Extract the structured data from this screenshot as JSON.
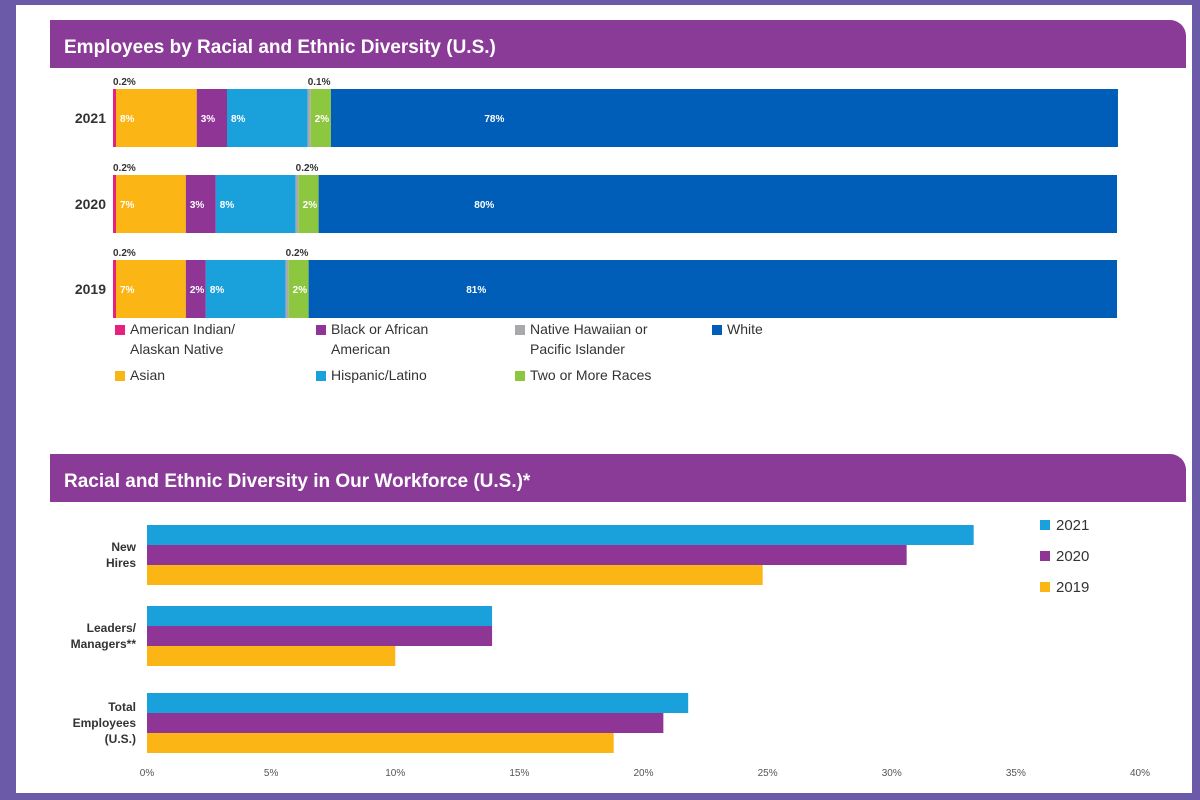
{
  "chart_data": [
    {
      "type": "bar",
      "orientation": "horizontal-stacked",
      "title": "Employees by Racial and Ethnic Diversity (U.S.)",
      "unit": "%",
      "xlim": [
        0,
        100
      ],
      "categories": [
        "2021",
        "2020",
        "2019"
      ],
      "series": [
        {
          "name": "American Indian/ Alaskan Native",
          "legend_lines": [
            "American Indian/",
            "Alaskan Native"
          ],
          "color": "#e8207e",
          "values": [
            0.2,
            0.2,
            0.2
          ],
          "labels": [
            "0.2%",
            "0.2%",
            "0.2%"
          ],
          "label_position": "above"
        },
        {
          "name": "Asian",
          "legend_lines": [
            "Asian"
          ],
          "color": "#fbb616",
          "values": [
            8,
            7,
            7
          ],
          "labels": [
            "8%",
            "7%",
            "7%"
          ],
          "label_position": "inside"
        },
        {
          "name": "Black or African American",
          "legend_lines": [
            "Black or African",
            "American"
          ],
          "color": "#8e3596",
          "values": [
            3,
            3,
            2
          ],
          "labels": [
            "3%",
            "3%",
            "2%"
          ],
          "label_position": "inside"
        },
        {
          "name": "Hispanic/Latino",
          "legend_lines": [
            "Hispanic/Latino"
          ],
          "color": "#1aa1dc",
          "values": [
            8,
            8,
            8
          ],
          "labels": [
            "8%",
            "8%",
            "8%"
          ],
          "label_position": "inside"
        },
        {
          "name": "Native Hawaiian or Pacific Islander",
          "legend_lines": [
            "Native Hawaiian or",
            "Pacific Islander"
          ],
          "color": "#a7a9ac",
          "values": [
            0.1,
            0.2,
            0.2
          ],
          "labels": [
            "0.1%",
            "0.2%",
            "0.2%"
          ],
          "label_position": "above"
        },
        {
          "name": "Two or More Races",
          "legend_lines": [
            "Two or More Races"
          ],
          "color": "#8dc63f",
          "values": [
            2,
            2,
            2
          ],
          "labels": [
            "2%",
            "2%",
            "2%"
          ],
          "label_position": "inside"
        },
        {
          "name": "White",
          "legend_lines": [
            "White"
          ],
          "color": "#005eb8",
          "values": [
            78,
            80,
            81
          ],
          "labels": [
            "78%",
            "80%",
            "81%"
          ],
          "label_position": "inside"
        }
      ],
      "legend_order": [
        0,
        2,
        4,
        6,
        1,
        3,
        5
      ]
    },
    {
      "type": "bar",
      "orientation": "horizontal-grouped",
      "title": "Racial and Ethnic Diversity in Our Workforce (U.S.)*",
      "categories": [
        "New Hires",
        "Leaders/ Managers**",
        "Total Employees (U.S.)"
      ],
      "category_lines": [
        [
          "New",
          "Hires"
        ],
        [
          "Leaders/",
          "Managers**"
        ],
        [
          "Total",
          "Employees",
          "(U.S.)"
        ]
      ],
      "series": [
        {
          "name": "2021",
          "color": "#1aa1dc",
          "values": [
            33.3,
            13.9,
            21.8
          ]
        },
        {
          "name": "2020",
          "color": "#8e3596",
          "values": [
            30.6,
            13.9,
            20.8
          ]
        },
        {
          "name": "2019",
          "color": "#fbb616",
          "values": [
            24.8,
            10.0,
            18.8
          ]
        }
      ],
      "xlim": [
        0,
        40
      ],
      "xticks": [
        "0%",
        "5%",
        "10%",
        "15%",
        "20%",
        "25%",
        "30%",
        "35%",
        "40%"
      ],
      "legend_position": "top-right"
    }
  ]
}
